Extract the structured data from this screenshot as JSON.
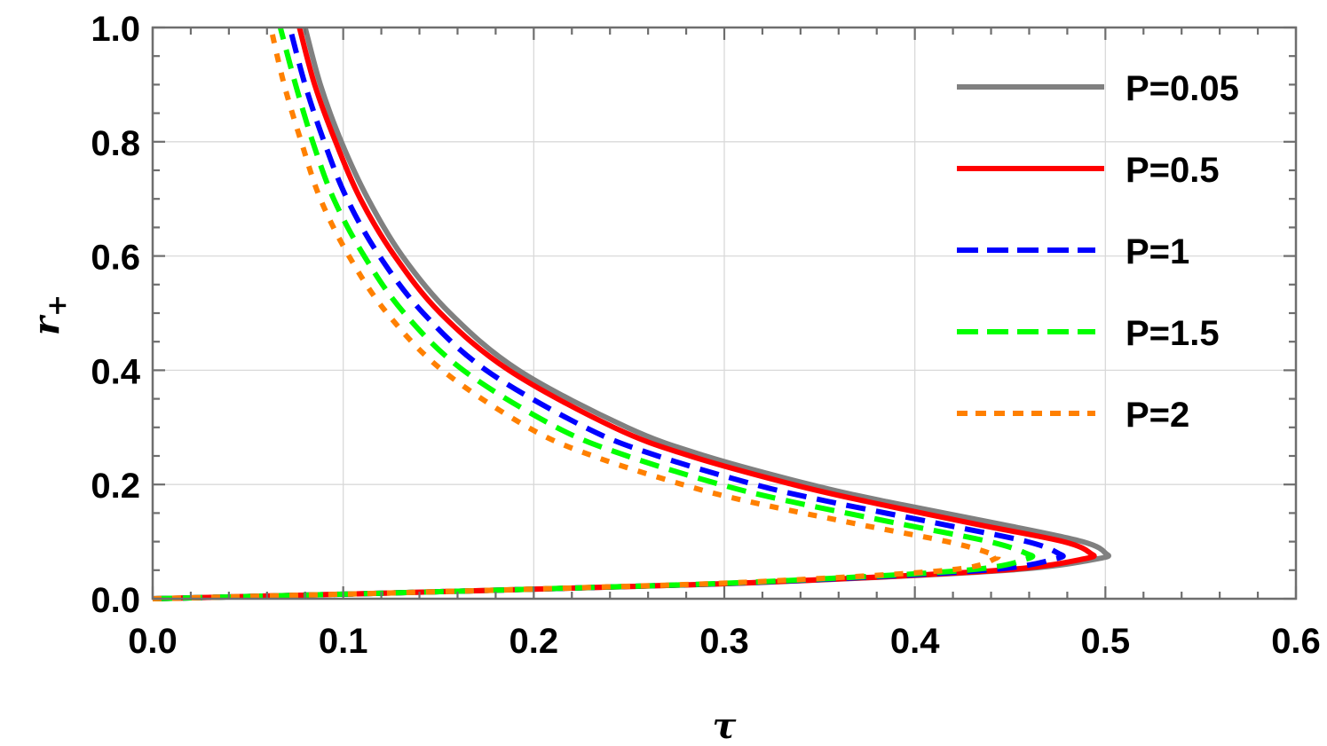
{
  "chart_data": {
    "type": "line",
    "title": "",
    "xlabel": "τ",
    "ylabel": "r",
    "ylabel_subscript": "+",
    "xlim": [
      0,
      0.6
    ],
    "ylim": [
      0,
      1.0
    ],
    "grid": true,
    "legend_position": "top-right",
    "x_ticks": [
      "0.0",
      "0.1",
      "0.2",
      "0.3",
      "0.4",
      "0.5",
      "0.6"
    ],
    "y_ticks": [
      "0.0",
      "0.2",
      "0.4",
      "0.6",
      "0.8",
      "1.0"
    ],
    "r_values": [
      0.005,
      0.01,
      0.02,
      0.03,
      0.05,
      0.07,
      0.08,
      0.1,
      0.13,
      0.17,
      0.2,
      0.25,
      0.3,
      0.4,
      0.5,
      0.6,
      0.7,
      0.8,
      0.9,
      1.0
    ],
    "series": [
      {
        "name": "P=0.05",
        "color": "#808080",
        "style": "solid",
        "tau": [
          0.062,
          0.123,
          0.235,
          0.329,
          0.449,
          0.496,
          0.5,
          0.488,
          0.446,
          0.385,
          0.345,
          0.29,
          0.249,
          0.192,
          0.156,
          0.131,
          0.113,
          0.099,
          0.088,
          0.08
        ]
      },
      {
        "name": "P=0.5",
        "color": "#ff0000",
        "style": "solid",
        "tau": [
          0.062,
          0.123,
          0.235,
          0.327,
          0.445,
          0.489,
          0.492,
          0.478,
          0.433,
          0.375,
          0.336,
          0.282,
          0.242,
          0.187,
          0.151,
          0.127,
          0.109,
          0.096,
          0.085,
          0.077
        ]
      },
      {
        "name": "P=1",
        "color": "#0000ff",
        "style": "dashed",
        "tau": [
          0.062,
          0.123,
          0.234,
          0.325,
          0.437,
          0.474,
          0.475,
          0.459,
          0.415,
          0.355,
          0.316,
          0.265,
          0.227,
          0.175,
          0.142,
          0.119,
          0.102,
          0.09,
          0.08,
          0.072
        ]
      },
      {
        "name": "P=1.5",
        "color": "#00ff00",
        "style": "dashed",
        "tau": [
          0.062,
          0.123,
          0.233,
          0.321,
          0.427,
          0.459,
          0.458,
          0.439,
          0.394,
          0.335,
          0.298,
          0.249,
          0.212,
          0.163,
          0.132,
          0.111,
          0.095,
          0.084,
          0.075,
          0.067
        ]
      },
      {
        "name": "P=2",
        "color": "#ff8000",
        "style": "dotted",
        "tau": [
          0.062,
          0.123,
          0.231,
          0.318,
          0.417,
          0.442,
          0.439,
          0.417,
          0.371,
          0.313,
          0.278,
          0.231,
          0.197,
          0.152,
          0.123,
          0.103,
          0.088,
          0.078,
          0.069,
          0.062
        ]
      }
    ]
  }
}
